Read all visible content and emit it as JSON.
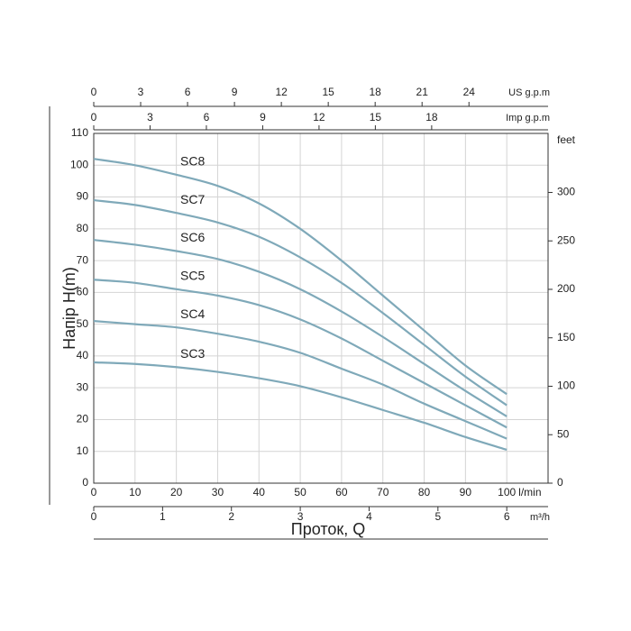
{
  "chart_data": {
    "type": "line",
    "x": [
      0,
      10,
      20,
      30,
      40,
      50,
      60,
      70,
      80,
      90,
      100
    ],
    "series": [
      {
        "name": "SC8",
        "color": "#7fa9b9",
        "values": [
          102,
          100,
          97,
          93.5,
          88,
          80,
          70,
          59,
          48,
          37,
          28
        ]
      },
      {
        "name": "SC7",
        "color": "#7fa9b9",
        "values": [
          89,
          87.5,
          85,
          82,
          77.5,
          71,
          63,
          53.5,
          43.5,
          33.5,
          24.5
        ]
      },
      {
        "name": "SC6",
        "color": "#7fa9b9",
        "values": [
          76.5,
          75,
          73,
          70.5,
          66.5,
          61,
          54,
          46,
          37.5,
          29,
          21
        ]
      },
      {
        "name": "SC5",
        "color": "#7fa9b9",
        "values": [
          64,
          63,
          61,
          59,
          56,
          51.5,
          45.5,
          38.5,
          31.5,
          24.5,
          17.5
        ]
      },
      {
        "name": "SC4",
        "color": "#7fa9b9",
        "values": [
          51,
          50,
          49,
          47,
          44.5,
          41,
          36,
          31,
          25,
          19.5,
          14
        ]
      },
      {
        "name": "SC3",
        "color": "#7fa9b9",
        "values": [
          38,
          37.5,
          36.5,
          35,
          33,
          30.5,
          27,
          23,
          19,
          14.5,
          10.5
        ]
      }
    ],
    "xlim": [
      0,
      110
    ],
    "xticks": [
      0,
      10,
      20,
      30,
      40,
      50,
      60,
      70,
      80,
      90,
      100
    ],
    "xunit": "l/min",
    "ylim": [
      0,
      110
    ],
    "yticks": [
      0,
      10,
      20,
      30,
      40,
      50,
      60,
      70,
      80,
      90,
      100,
      110
    ],
    "ylabel": "Напір H(m)",
    "y2lim": [
      0,
      360.9
    ],
    "y2ticks": [
      0,
      50,
      100,
      150,
      200,
      250,
      300
    ],
    "y2unit": "feet",
    "xlabel": "Проток, Q",
    "extra_x_axes": [
      {
        "unit": "US g.p.m",
        "lim": [
          0,
          29.06
        ],
        "ticks": [
          0,
          3,
          6,
          9,
          12,
          15,
          18,
          21,
          24
        ]
      },
      {
        "unit": "Imp g.p.m",
        "lim": [
          0,
          24.2
        ],
        "ticks": [
          0,
          3,
          6,
          9,
          12,
          15,
          18
        ]
      },
      {
        "unit": "m³/h",
        "lim": [
          0,
          6.6
        ],
        "ticks": [
          0,
          1,
          2,
          3,
          4,
          5,
          6
        ]
      }
    ],
    "grid": true
  }
}
